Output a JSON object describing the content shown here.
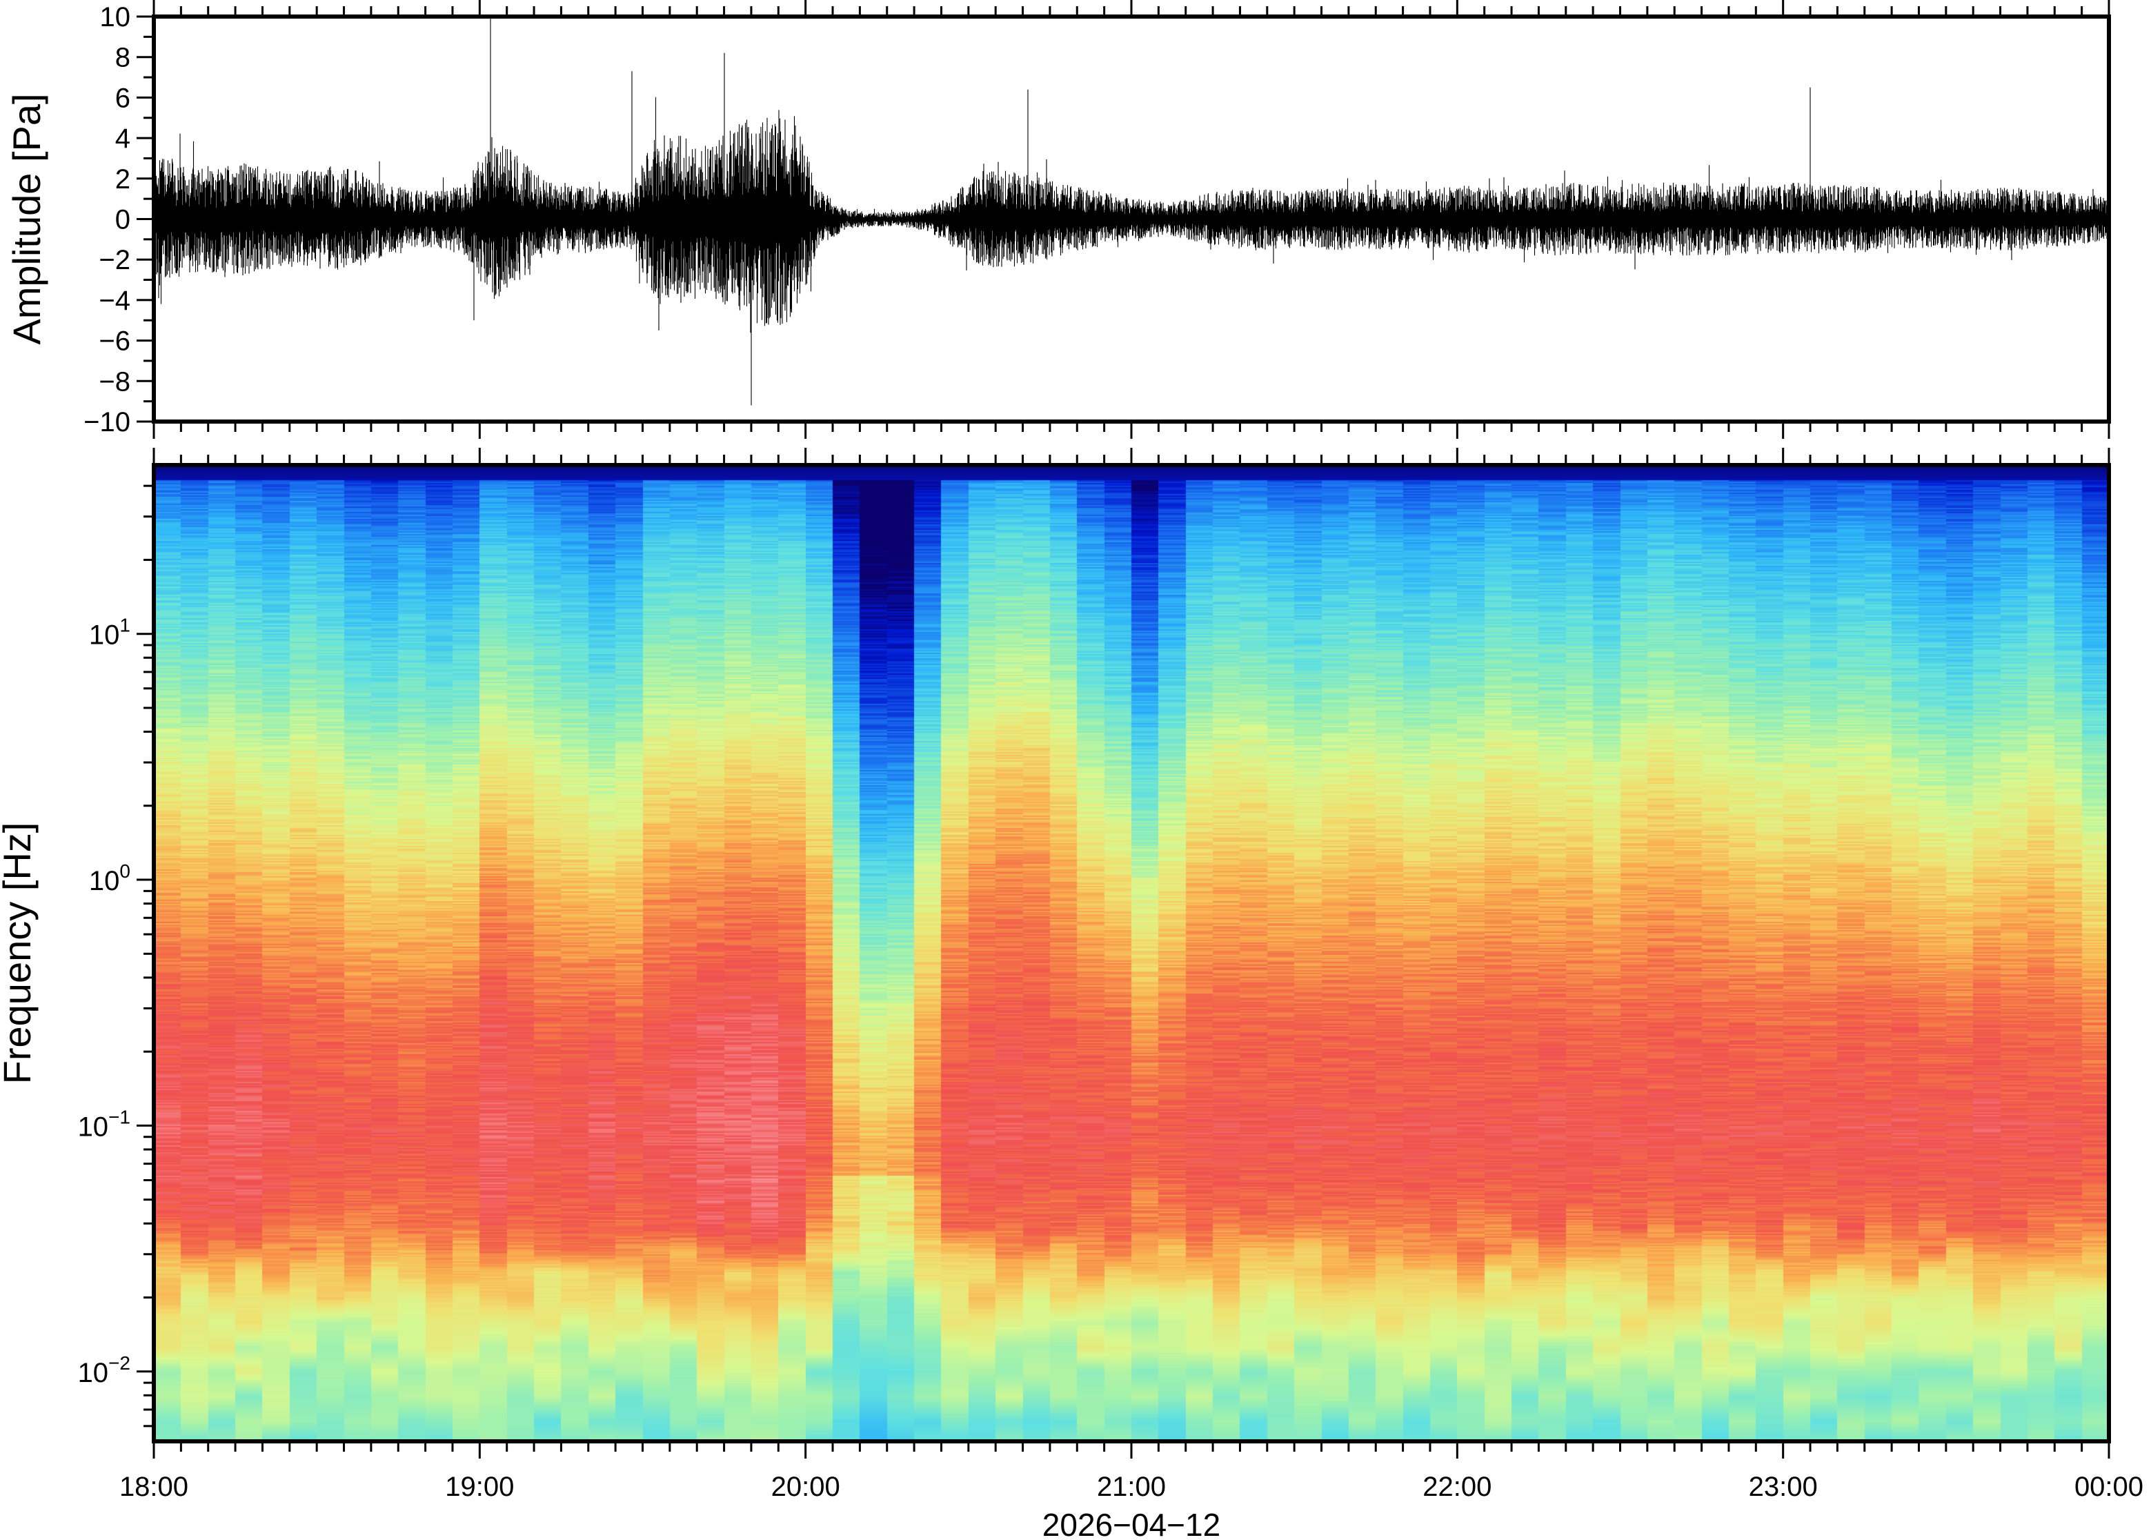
{
  "chart_data": [
    {
      "type": "line",
      "title": "",
      "ylabel": "Amplitude [Pa]",
      "ylim": [
        -10,
        10
      ],
      "x_range": [
        "18:00",
        "00:00"
      ],
      "yticks": [
        {
          "value": 10,
          "label": "10"
        },
        {
          "value": 8,
          "label": "8"
        },
        {
          "value": 6,
          "label": "6"
        },
        {
          "value": 4,
          "label": "4"
        },
        {
          "value": 2,
          "label": "2"
        },
        {
          "value": 0,
          "label": "0"
        },
        {
          "value": -2,
          "label": "−2"
        },
        {
          "value": -4,
          "label": "−4"
        },
        {
          "value": -6,
          "label": "−6"
        },
        {
          "value": -8,
          "label": "−8"
        },
        {
          "value": -10,
          "label": "−10"
        }
      ],
      "envelope_5min": [
        2.5,
        2.2,
        2.2,
        2.4,
        2.0,
        2.0,
        2.2,
        2.0,
        1.5,
        1.2,
        1.2,
        1.5,
        3.5,
        2.5,
        1.5,
        1.5,
        1.3,
        1.2,
        3.5,
        3.5,
        3.0,
        4.0,
        4.5,
        4.5,
        1.2,
        0.4,
        0.3,
        0.3,
        0.5,
        1.2,
        2.0,
        2.0,
        1.8,
        1.5,
        1.2,
        1.0,
        0.8,
        0.7,
        1.0,
        1.2,
        1.3,
        1.2,
        1.2,
        1.3,
        1.2,
        1.3,
        1.2,
        1.3,
        1.4,
        1.2,
        1.3,
        1.5,
        1.5,
        1.4,
        1.5,
        1.5,
        1.5,
        1.5,
        1.5,
        1.4,
        1.5,
        1.4,
        1.4,
        1.3,
        1.2,
        1.2,
        1.2,
        1.3,
        1.3,
        1.2,
        1.1,
        1.0
      ],
      "peaks": [
        {
          "minute": 62,
          "value": 10.0
        },
        {
          "minute": 110,
          "value": -9.2
        },
        {
          "minute": 88,
          "value": 7.3
        },
        {
          "minute": 105,
          "value": 8.2
        },
        {
          "minute": 93,
          "value": -5.5
        },
        {
          "minute": 161,
          "value": 6.4
        },
        {
          "minute": 305,
          "value": 6.5
        },
        {
          "minute": 59,
          "value": -5.0
        }
      ]
    },
    {
      "type": "heatmap",
      "title": "",
      "ylabel": "Frequency [Hz]",
      "xlabel": "2026−04−12",
      "yscale": "log",
      "ylim": [
        0.0052,
        48.6
      ],
      "column_minutes": 5,
      "xticks": [
        {
          "minute": 0,
          "label": "18:00"
        },
        {
          "minute": 60,
          "label": "19:00"
        },
        {
          "minute": 120,
          "label": "20:00"
        },
        {
          "minute": 180,
          "label": "21:00"
        },
        {
          "minute": 240,
          "label": "22:00"
        },
        {
          "minute": 300,
          "label": "23:00"
        },
        {
          "minute": 360,
          "label": "00:00"
        }
      ],
      "yticks": [
        {
          "value": 10,
          "base": "10",
          "exp": "1"
        },
        {
          "value": 1,
          "base": "10",
          "exp": "0"
        },
        {
          "value": 0.1,
          "base": "10",
          "exp": "−1"
        },
        {
          "value": 0.01,
          "base": "10",
          "exp": "−2"
        }
      ],
      "base_profile_log10f": [
        [
          1.69,
          0.0
        ],
        [
          1.655,
          0.06
        ],
        [
          1.62,
          0.2
        ],
        [
          1.4,
          0.31
        ],
        [
          1.2,
          0.37
        ],
        [
          1.0,
          0.43
        ],
        [
          0.7,
          0.52
        ],
        [
          0.5,
          0.6
        ],
        [
          0.2,
          0.68
        ],
        [
          0.0,
          0.74
        ],
        [
          -0.3,
          0.8
        ],
        [
          -0.6,
          0.86
        ],
        [
          -0.9,
          0.88
        ],
        [
          -1.0,
          0.9
        ],
        [
          -1.2,
          0.88
        ],
        [
          -1.4,
          0.84
        ],
        [
          -1.55,
          0.74
        ],
        [
          -1.75,
          0.64
        ],
        [
          -2.0,
          0.54
        ],
        [
          -2.29,
          0.46
        ]
      ],
      "hf_offset": [
        0.02,
        0,
        0.03,
        0,
        -0.02,
        0.02,
        0,
        -0.05,
        -0.06,
        -0.03,
        -0.06,
        -0.04,
        0.05,
        0.03,
        0,
        -0.02,
        -0.06,
        -0.03,
        0.05,
        0.06,
        0.05,
        0.08,
        0.06,
        0.07,
        0.02,
        -0.2,
        -0.35,
        -0.35,
        -0.14,
        0.02,
        0.08,
        0.1,
        0.1,
        0.05,
        -0.04,
        -0.08,
        -0.2,
        -0.1,
        0,
        0.02,
        0.02,
        0,
        -0.02,
        0,
        0.02,
        0,
        -0.02,
        0,
        0,
        0.03,
        0.02,
        0,
        0.02,
        -0.02,
        0.03,
        0.05,
        0.03,
        0.02,
        0,
        -0.02,
        0,
        -0.02,
        0,
        0,
        -0.04,
        -0.06,
        -0.08,
        -0.05,
        -0.03,
        0,
        -0.04,
        -0.1
      ],
      "lf_offset": [
        0.03,
        0.02,
        0.03,
        0.04,
        0.02,
        0,
        0,
        -0.01,
        0,
        -0.02,
        0,
        0,
        0.04,
        0.02,
        0,
        0.01,
        0.03,
        0,
        0.02,
        0.03,
        0.05,
        0.05,
        0.06,
        0.03,
        -0.03,
        -0.16,
        -0.2,
        -0.18,
        -0.08,
        0,
        0.01,
        0.01,
        0,
        0,
        0,
        0,
        -0.04,
        -0.02,
        0,
        0,
        0,
        0,
        0,
        0,
        0,
        0,
        0,
        0,
        0,
        0,
        0,
        0.01,
        0,
        0,
        0,
        0,
        0.01,
        0,
        0,
        0,
        0,
        0,
        0.01,
        0,
        0.01,
        0,
        0,
        0.02,
        0,
        0,
        0,
        -0.02
      ],
      "colormap": [
        [
          0.0,
          "#0a006e"
        ],
        [
          0.1,
          "#0018d0"
        ],
        [
          0.22,
          "#1a70f0"
        ],
        [
          0.32,
          "#30b8f8"
        ],
        [
          0.42,
          "#60e0e0"
        ],
        [
          0.52,
          "#9cf0b0"
        ],
        [
          0.6,
          "#d8f890"
        ],
        [
          0.68,
          "#f0e070"
        ],
        [
          0.76,
          "#fab050"
        ],
        [
          0.84,
          "#f47048"
        ],
        [
          0.9,
          "#f05050"
        ],
        [
          1.0,
          "#fa9aa0"
        ]
      ]
    }
  ]
}
